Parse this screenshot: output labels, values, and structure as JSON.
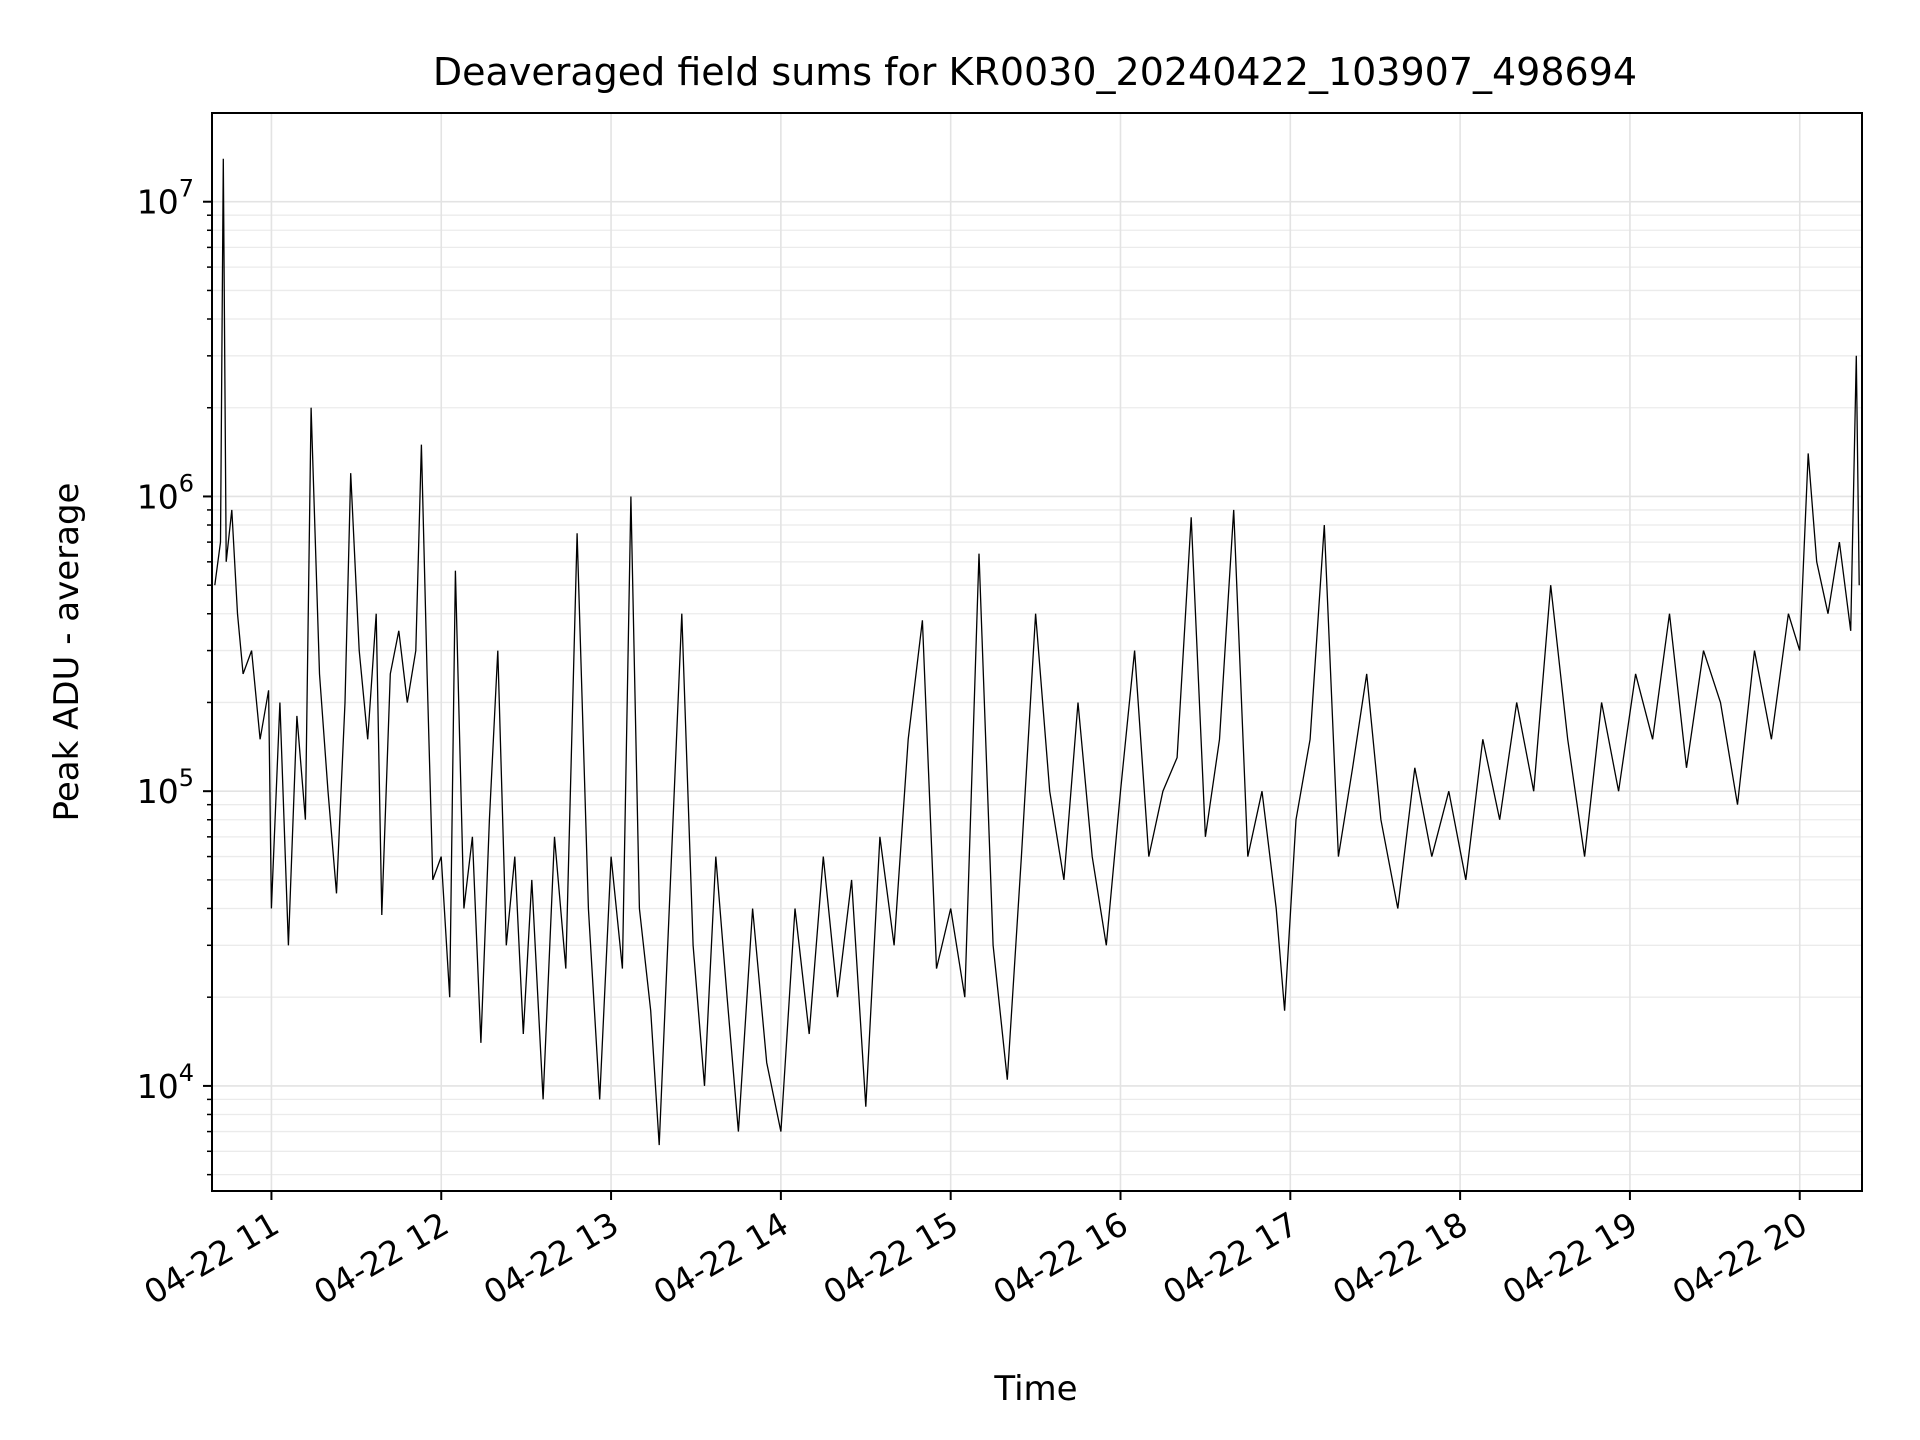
{
  "chart_data": {
    "type": "line",
    "title": "Deaveraged field sums for KR0030_20240422_103907_498694",
    "xlabel": "Time",
    "ylabel": "Peak ADU - average",
    "yscale": "log",
    "ylim": [
      4400,
      20000000
    ],
    "xlim": [
      "2024-04-22 10:39",
      "2024-04-22 20:22"
    ],
    "x_tick_labels": [
      "04-22 11",
      "04-22 12",
      "04-22 13",
      "04-22 14",
      "04-22 15",
      "04-22 16",
      "04-22 17",
      "04-22 18",
      "04-22 19",
      "04-22 20"
    ],
    "x_ticks": [
      "2024-04-22 11:00",
      "2024-04-22 12:00",
      "2024-04-22 13:00",
      "2024-04-22 14:00",
      "2024-04-22 15:00",
      "2024-04-22 16:00",
      "2024-04-22 17:00",
      "2024-04-22 18:00",
      "2024-04-22 19:00",
      "2024-04-22 20:00"
    ],
    "y_tick_labels": [
      {
        "value": 10000,
        "base": "10",
        "exp": "4"
      },
      {
        "value": 100000,
        "base": "10",
        "exp": "5"
      },
      {
        "value": 1000000,
        "base": "10",
        "exp": "6"
      },
      {
        "value": 10000000,
        "base": "10",
        "exp": "7"
      }
    ],
    "grid": true,
    "series": [
      {
        "color": "#000000",
        "points": [
          [
            "2024-04-22 10:40",
            500000
          ],
          [
            "2024-04-22 10:42",
            700000
          ],
          [
            "2024-04-22 10:43",
            14000000
          ],
          [
            "2024-04-22 10:44",
            600000
          ],
          [
            "2024-04-22 10:46",
            900000
          ],
          [
            "2024-04-22 10:48",
            400000
          ],
          [
            "2024-04-22 10:50",
            250000
          ],
          [
            "2024-04-22 10:53",
            300000
          ],
          [
            "2024-04-22 10:56",
            150000
          ],
          [
            "2024-04-22 10:59",
            220000
          ],
          [
            "2024-04-22 11:00",
            40000
          ],
          [
            "2024-04-22 11:03",
            200000
          ],
          [
            "2024-04-22 11:06",
            30000
          ],
          [
            "2024-04-22 11:09",
            180000
          ],
          [
            "2024-04-22 11:12",
            80000
          ],
          [
            "2024-04-22 11:14",
            2000000
          ],
          [
            "2024-04-22 11:17",
            250000
          ],
          [
            "2024-04-22 11:20",
            100000
          ],
          [
            "2024-04-22 11:23",
            45000
          ],
          [
            "2024-04-22 11:26",
            200000
          ],
          [
            "2024-04-22 11:28",
            1200000
          ],
          [
            "2024-04-22 11:31",
            300000
          ],
          [
            "2024-04-22 11:34",
            150000
          ],
          [
            "2024-04-22 11:37",
            400000
          ],
          [
            "2024-04-22 11:39",
            38000
          ],
          [
            "2024-04-22 11:42",
            250000
          ],
          [
            "2024-04-22 11:45",
            350000
          ],
          [
            "2024-04-22 11:48",
            200000
          ],
          [
            "2024-04-22 11:51",
            300000
          ],
          [
            "2024-04-22 11:53",
            1500000
          ],
          [
            "2024-04-22 11:55",
            250000
          ],
          [
            "2024-04-22 11:57",
            50000
          ],
          [
            "2024-04-22 12:00",
            60000
          ],
          [
            "2024-04-22 12:03",
            20000
          ],
          [
            "2024-04-22 12:05",
            560000
          ],
          [
            "2024-04-22 12:08",
            40000
          ],
          [
            "2024-04-22 12:11",
            70000
          ],
          [
            "2024-04-22 12:14",
            14000
          ],
          [
            "2024-04-22 12:17",
            80000
          ],
          [
            "2024-04-22 12:20",
            300000
          ],
          [
            "2024-04-22 12:23",
            30000
          ],
          [
            "2024-04-22 12:26",
            60000
          ],
          [
            "2024-04-22 12:29",
            15000
          ],
          [
            "2024-04-22 12:32",
            50000
          ],
          [
            "2024-04-22 12:36",
            9000
          ],
          [
            "2024-04-22 12:40",
            70000
          ],
          [
            "2024-04-22 12:44",
            25000
          ],
          [
            "2024-04-22 12:48",
            750000
          ],
          [
            "2024-04-22 12:52",
            40000
          ],
          [
            "2024-04-22 12:56",
            9000
          ],
          [
            "2024-04-22 13:00",
            60000
          ],
          [
            "2024-04-22 13:04",
            25000
          ],
          [
            "2024-04-22 13:07",
            1000000
          ],
          [
            "2024-04-22 13:10",
            40000
          ],
          [
            "2024-04-22 13:14",
            18000
          ],
          [
            "2024-04-22 13:17",
            6300
          ],
          [
            "2024-04-22 13:21",
            50000
          ],
          [
            "2024-04-22 13:25",
            400000
          ],
          [
            "2024-04-22 13:29",
            30000
          ],
          [
            "2024-04-22 13:33",
            10000
          ],
          [
            "2024-04-22 13:37",
            60000
          ],
          [
            "2024-04-22 13:41",
            20000
          ],
          [
            "2024-04-22 13:45",
            7000
          ],
          [
            "2024-04-22 13:50",
            40000
          ],
          [
            "2024-04-22 13:55",
            12000
          ],
          [
            "2024-04-22 14:00",
            7000
          ],
          [
            "2024-04-22 14:05",
            40000
          ],
          [
            "2024-04-22 14:10",
            15000
          ],
          [
            "2024-04-22 14:15",
            60000
          ],
          [
            "2024-04-22 14:20",
            20000
          ],
          [
            "2024-04-22 14:25",
            50000
          ],
          [
            "2024-04-22 14:30",
            8500
          ],
          [
            "2024-04-22 14:35",
            70000
          ],
          [
            "2024-04-22 14:40",
            30000
          ],
          [
            "2024-04-22 14:45",
            150000
          ],
          [
            "2024-04-22 14:50",
            380000
          ],
          [
            "2024-04-22 14:55",
            25000
          ],
          [
            "2024-04-22 15:00",
            40000
          ],
          [
            "2024-04-22 15:05",
            20000
          ],
          [
            "2024-04-22 15:10",
            640000
          ],
          [
            "2024-04-22 15:15",
            30000
          ],
          [
            "2024-04-22 15:20",
            10500
          ],
          [
            "2024-04-22 15:25",
            60000
          ],
          [
            "2024-04-22 15:30",
            400000
          ],
          [
            "2024-04-22 15:35",
            100000
          ],
          [
            "2024-04-22 15:40",
            50000
          ],
          [
            "2024-04-22 15:45",
            200000
          ],
          [
            "2024-04-22 15:50",
            60000
          ],
          [
            "2024-04-22 15:55",
            30000
          ],
          [
            "2024-04-22 16:00",
            100000
          ],
          [
            "2024-04-22 16:05",
            300000
          ],
          [
            "2024-04-22 16:10",
            60000
          ],
          [
            "2024-04-22 16:15",
            100000
          ],
          [
            "2024-04-22 16:20",
            130000
          ],
          [
            "2024-04-22 16:25",
            850000
          ],
          [
            "2024-04-22 16:30",
            70000
          ],
          [
            "2024-04-22 16:35",
            150000
          ],
          [
            "2024-04-22 16:40",
            900000
          ],
          [
            "2024-04-22 16:45",
            60000
          ],
          [
            "2024-04-22 16:50",
            100000
          ],
          [
            "2024-04-22 16:55",
            40000
          ],
          [
            "2024-04-22 16:58",
            18000
          ],
          [
            "2024-04-22 17:02",
            80000
          ],
          [
            "2024-04-22 17:07",
            150000
          ],
          [
            "2024-04-22 17:12",
            800000
          ],
          [
            "2024-04-22 17:17",
            60000
          ],
          [
            "2024-04-22 17:22",
            120000
          ],
          [
            "2024-04-22 17:27",
            250000
          ],
          [
            "2024-04-22 17:32",
            80000
          ],
          [
            "2024-04-22 17:38",
            40000
          ],
          [
            "2024-04-22 17:44",
            120000
          ],
          [
            "2024-04-22 17:50",
            60000
          ],
          [
            "2024-04-22 17:56",
            100000
          ],
          [
            "2024-04-22 18:02",
            50000
          ],
          [
            "2024-04-22 18:08",
            150000
          ],
          [
            "2024-04-22 18:14",
            80000
          ],
          [
            "2024-04-22 18:20",
            200000
          ],
          [
            "2024-04-22 18:26",
            100000
          ],
          [
            "2024-04-22 18:32",
            500000
          ],
          [
            "2024-04-22 18:38",
            150000
          ],
          [
            "2024-04-22 18:44",
            60000
          ],
          [
            "2024-04-22 18:50",
            200000
          ],
          [
            "2024-04-22 18:56",
            100000
          ],
          [
            "2024-04-22 19:02",
            250000
          ],
          [
            "2024-04-22 19:08",
            150000
          ],
          [
            "2024-04-22 19:14",
            400000
          ],
          [
            "2024-04-22 19:20",
            120000
          ],
          [
            "2024-04-22 19:26",
            300000
          ],
          [
            "2024-04-22 19:32",
            200000
          ],
          [
            "2024-04-22 19:38",
            90000
          ],
          [
            "2024-04-22 19:44",
            300000
          ],
          [
            "2024-04-22 19:50",
            150000
          ],
          [
            "2024-04-22 19:56",
            400000
          ],
          [
            "2024-04-22 20:00",
            300000
          ],
          [
            "2024-04-22 20:03",
            1400000
          ],
          [
            "2024-04-22 20:06",
            600000
          ],
          [
            "2024-04-22 20:10",
            400000
          ],
          [
            "2024-04-22 20:14",
            700000
          ],
          [
            "2024-04-22 20:18",
            350000
          ],
          [
            "2024-04-22 20:20",
            3000000
          ],
          [
            "2024-04-22 20:21",
            500000
          ]
        ]
      }
    ]
  }
}
